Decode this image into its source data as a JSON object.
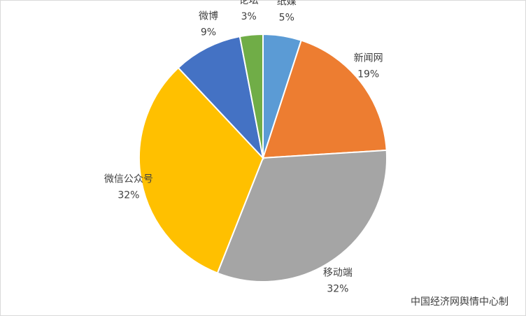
{
  "chart_data": {
    "type": "pie",
    "categories": [
      "纸媒",
      "新闻网",
      "移动端",
      "微信公众号",
      "微博",
      "论坛"
    ],
    "values": [
      5,
      19,
      32,
      32,
      9,
      3
    ],
    "value_labels": [
      "5%",
      "19%",
      "32%",
      "32%",
      "9%",
      "3%"
    ],
    "colors": [
      "#5b9bd5",
      "#ed7d31",
      "#a5a5a5",
      "#ffc000",
      "#4472c4",
      "#70ad47"
    ],
    "annotation": "中国经济网舆情中心制"
  }
}
